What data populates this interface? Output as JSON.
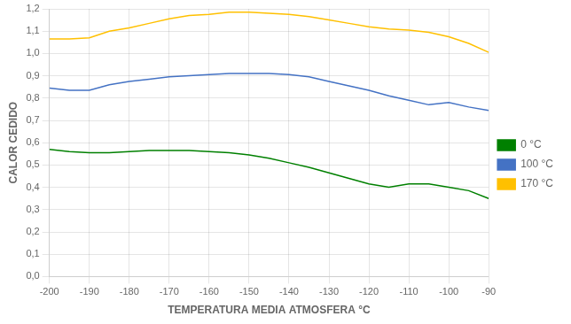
{
  "chart_data": {
    "type": "line",
    "xlabel": "TEMPERATURA MEDIA ATMOSFERA °C",
    "ylabel": "CALOR CEDIDO",
    "x": [
      -200,
      -195,
      -190,
      -185,
      -180,
      -175,
      -170,
      -165,
      -160,
      -155,
      -150,
      -145,
      -140,
      -135,
      -130,
      -125,
      -120,
      -115,
      -110,
      -105,
      -100,
      -95,
      -90
    ],
    "series": [
      {
        "name": "0 °C",
        "color": "#008000",
        "values": [
          0.57,
          0.56,
          0.555,
          0.555,
          0.56,
          0.565,
          0.565,
          0.565,
          0.56,
          0.555,
          0.545,
          0.53,
          0.51,
          0.49,
          0.465,
          0.44,
          0.415,
          0.4,
          0.415,
          0.415,
          0.4,
          0.385,
          0.35
        ]
      },
      {
        "name": "100 °C",
        "color": "#4472C4",
        "values": [
          0.845,
          0.835,
          0.835,
          0.86,
          0.875,
          0.885,
          0.895,
          0.9,
          0.905,
          0.91,
          0.91,
          0.91,
          0.905,
          0.895,
          0.875,
          0.855,
          0.835,
          0.81,
          0.79,
          0.77,
          0.78,
          0.76,
          0.745
        ]
      },
      {
        "name": "170 °C",
        "color": "#FFC000",
        "values": [
          1.065,
          1.065,
          1.07,
          1.1,
          1.115,
          1.135,
          1.155,
          1.17,
          1.175,
          1.185,
          1.185,
          1.18,
          1.175,
          1.165,
          1.15,
          1.135,
          1.12,
          1.11,
          1.105,
          1.095,
          1.075,
          1.045,
          1.005
        ]
      }
    ],
    "xlim": [
      -200,
      -90
    ],
    "ylim": [
      0,
      1.2
    ],
    "xticks": [
      -200,
      -190,
      -180,
      -170,
      -160,
      -150,
      -140,
      -130,
      -120,
      -110,
      -100,
      -90
    ],
    "yticks": [
      {
        "value": 0,
        "label": "0,0"
      },
      {
        "value": 0.1,
        "label": "0,1"
      },
      {
        "value": 0.2,
        "label": "0,2"
      },
      {
        "value": 0.3,
        "label": "0,3"
      },
      {
        "value": 0.4,
        "label": "0,4"
      },
      {
        "value": 0.5,
        "label": "0,5"
      },
      {
        "value": 0.6,
        "label": "0,6"
      },
      {
        "value": 0.7,
        "label": "0,7"
      },
      {
        "value": 0.8,
        "label": "0,8"
      },
      {
        "value": 0.9,
        "label": "0,9"
      },
      {
        "value": 1.0,
        "label": "1,0"
      },
      {
        "value": 1.1,
        "label": "1,1"
      },
      {
        "value": 1.2,
        "label": "1,2"
      }
    ],
    "grid": true,
    "legend": "right"
  }
}
